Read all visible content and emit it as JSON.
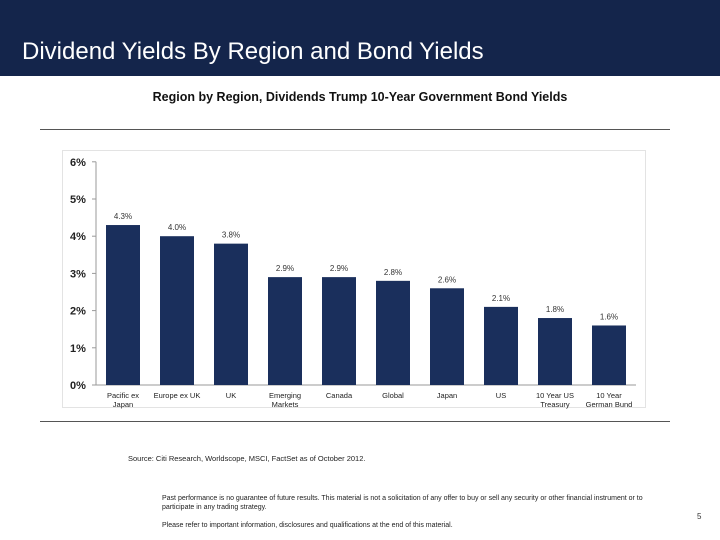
{
  "header": {
    "title": "Dividend Yields By Region and Bond Yields"
  },
  "colors": {
    "header_bg": "#14254b",
    "bar": "#1a2f5c"
  },
  "chart_data": {
    "type": "bar",
    "title": "Region by Region, Dividends Trump 10-Year Government Bond Yields",
    "categories": [
      "Pacific ex Japan",
      "Europe ex UK",
      "UK",
      "Emerging Markets",
      "Canada",
      "Global",
      "Japan",
      "US",
      "10 Year US Treasury",
      "10 Year German Bund"
    ],
    "category_lines": [
      [
        "Pacific ex",
        "Japan"
      ],
      [
        "Europe ex UK"
      ],
      [
        "UK"
      ],
      [
        "Emerging",
        "Markets"
      ],
      [
        "Canada"
      ],
      [
        "Global"
      ],
      [
        "Japan"
      ],
      [
        "US"
      ],
      [
        "10 Year US",
        "Treasury"
      ],
      [
        "10 Year",
        "German Bund"
      ]
    ],
    "values": [
      4.3,
      4.0,
      3.8,
      2.9,
      2.9,
      2.8,
      2.6,
      2.1,
      1.8,
      1.6
    ],
    "value_labels": [
      "4.3%",
      "4.0%",
      "3.8%",
      "2.9%",
      "2.9%",
      "2.8%",
      "2.6%",
      "2.1%",
      "1.8%",
      "1.6%"
    ],
    "yticks": [
      "0%",
      "1%",
      "2%",
      "3%",
      "4%",
      "5%",
      "6%"
    ],
    "ylim": [
      0,
      6
    ],
    "grid": false,
    "legend": "none"
  },
  "source": "Source: Citi Research, Worldscope, MSCI, FactSet as of October 2012.",
  "footnote": {
    "disclaimer": "Past performance is no guarantee of future results. This material is not a solicitation of any offer to buy or sell any security or other financial instrument or to participate in any trading strategy.",
    "refer": "Please refer to important information, disclosures and qualifications at the end of this material."
  },
  "page_number": "5"
}
